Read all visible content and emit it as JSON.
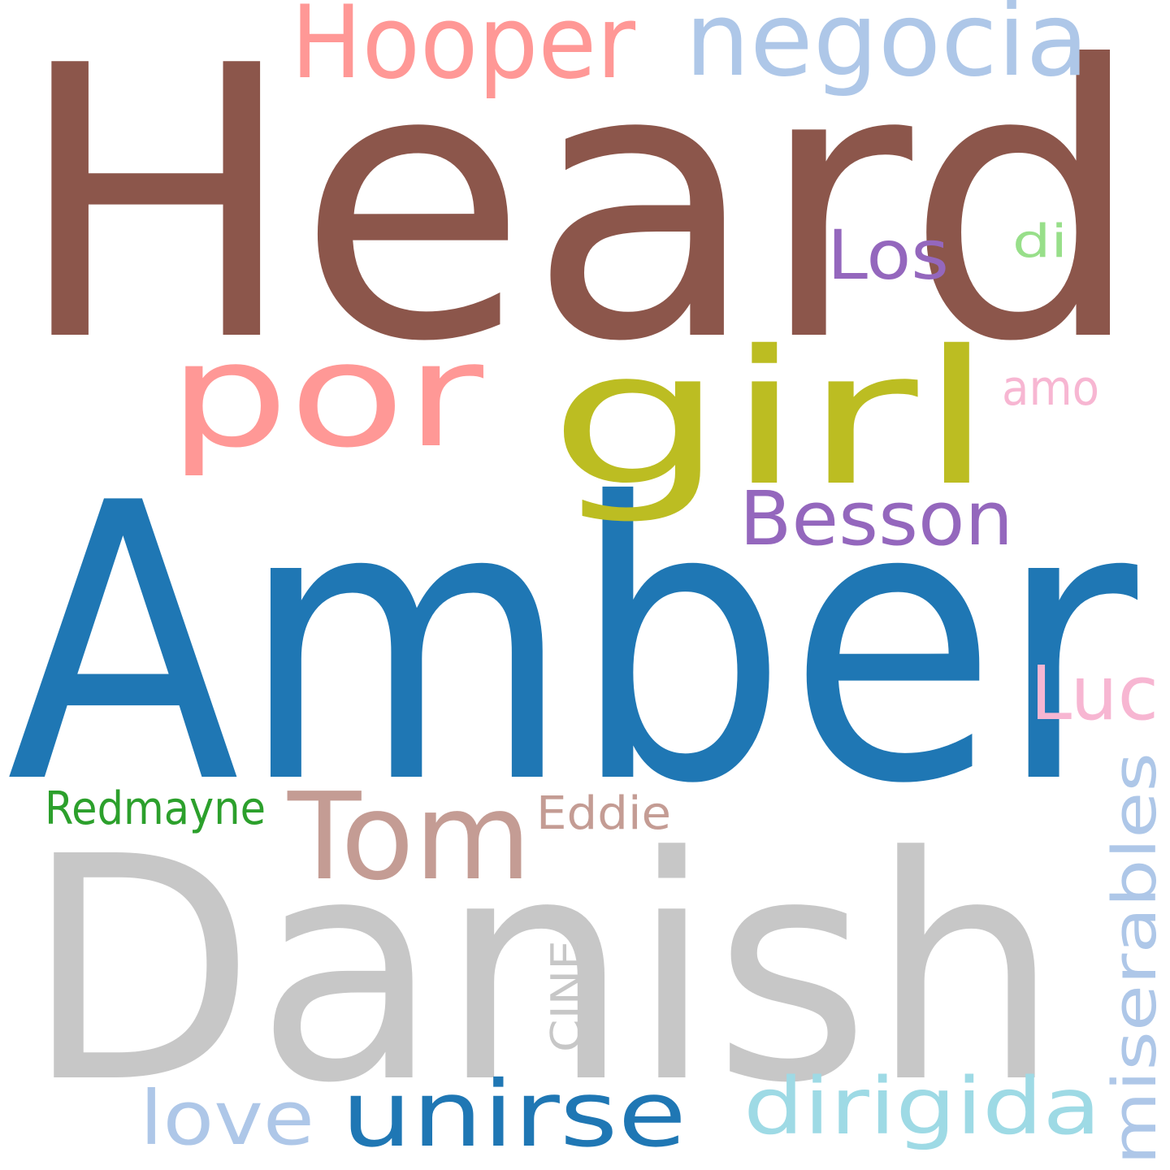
{
  "words": [
    {
      "text": "Heard",
      "color": "#8c564b"
    },
    {
      "text": "Amber",
      "color": "#1f77b4"
    },
    {
      "text": "Danish",
      "color": "#c7c7c7"
    },
    {
      "text": "girl",
      "color": "#bcbd22"
    },
    {
      "text": "por",
      "color": "#ff9896"
    },
    {
      "text": "Hooper",
      "color": "#ff9896"
    },
    {
      "text": "negocia",
      "color": "#aec7e8"
    },
    {
      "text": "Los",
      "color": "#9467bd"
    },
    {
      "text": "di",
      "color": "#98df8a"
    },
    {
      "text": "amo",
      "color": "#f7b6d2"
    },
    {
      "text": "Besson",
      "color": "#9467bd"
    },
    {
      "text": "Luc",
      "color": "#f7b6d2"
    },
    {
      "text": "Tom",
      "color": "#c49c94"
    },
    {
      "text": "Eddie",
      "color": "#c49c94"
    },
    {
      "text": "Redmayne",
      "color": "#2ca02c"
    },
    {
      "text": "miserables",
      "color": "#aec7e8"
    },
    {
      "text": "CINE",
      "color": "#c7c7c7"
    },
    {
      "text": "love",
      "color": "#aec7e8"
    },
    {
      "text": "unirse",
      "color": "#1f77b4"
    },
    {
      "text": "dirigida",
      "color": "#9edae5"
    }
  ]
}
